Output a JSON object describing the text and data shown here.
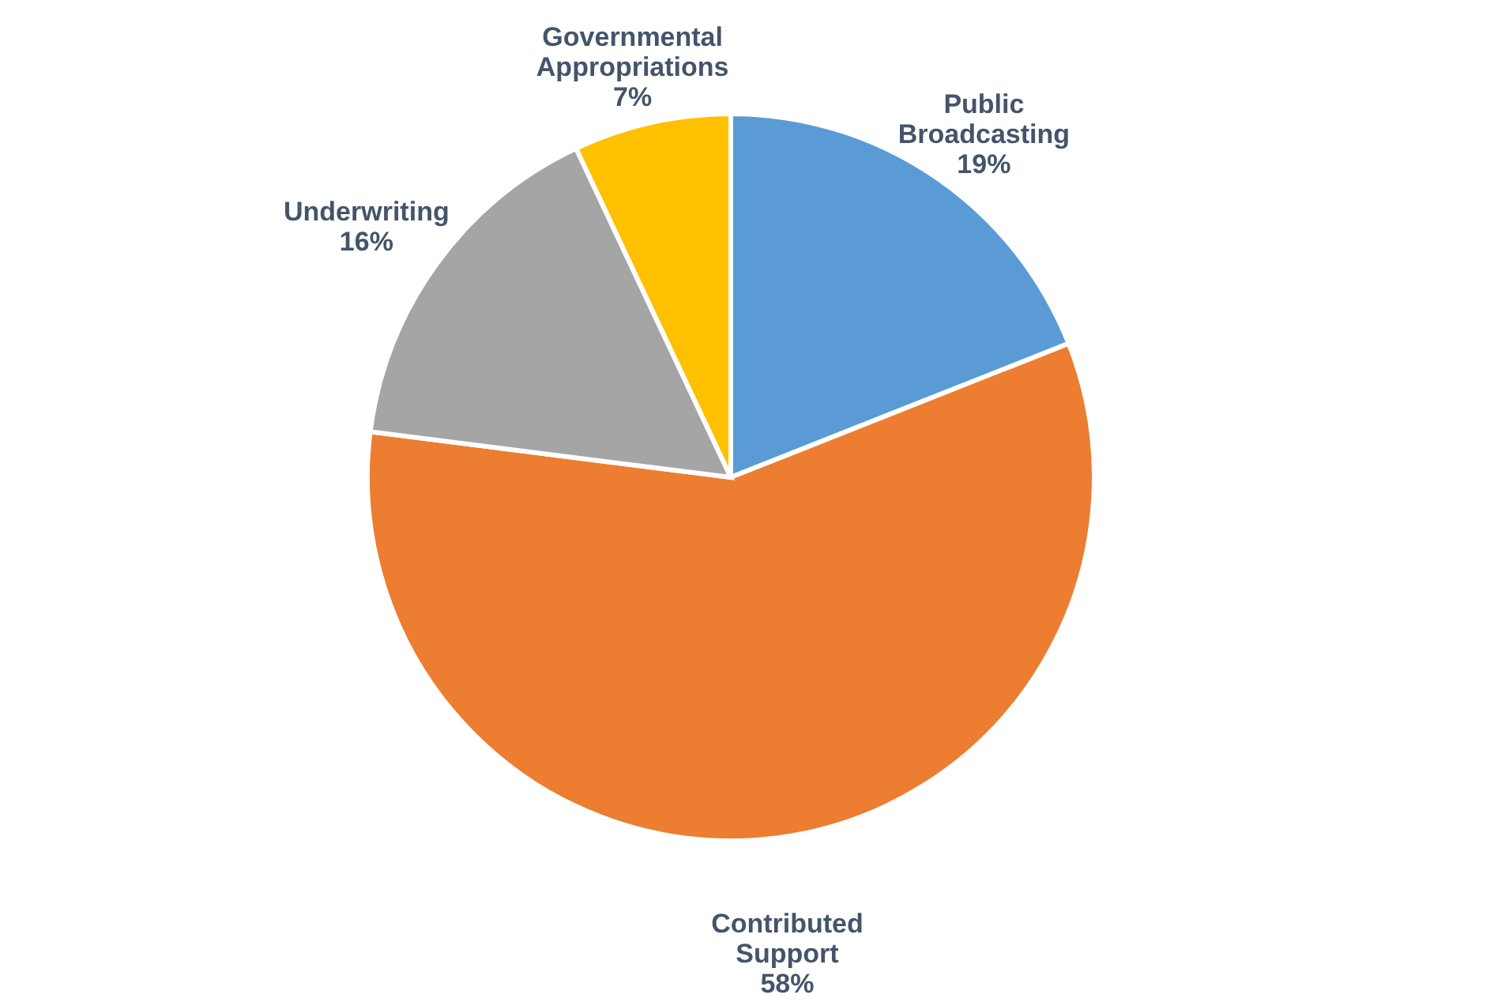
{
  "chart_data": {
    "type": "pie",
    "categories": [
      "Public Broadcasting",
      "Contributed Support",
      "Underwriting",
      "Governmental Appropriations"
    ],
    "values": [
      19,
      58,
      16,
      7
    ],
    "value_labels": [
      "19%",
      "58%",
      "16%",
      "7%"
    ],
    "colors": [
      "#5b9bd5",
      "#ed7d31",
      "#a5a5a5",
      "#ffc000"
    ],
    "legend": false
  }
}
